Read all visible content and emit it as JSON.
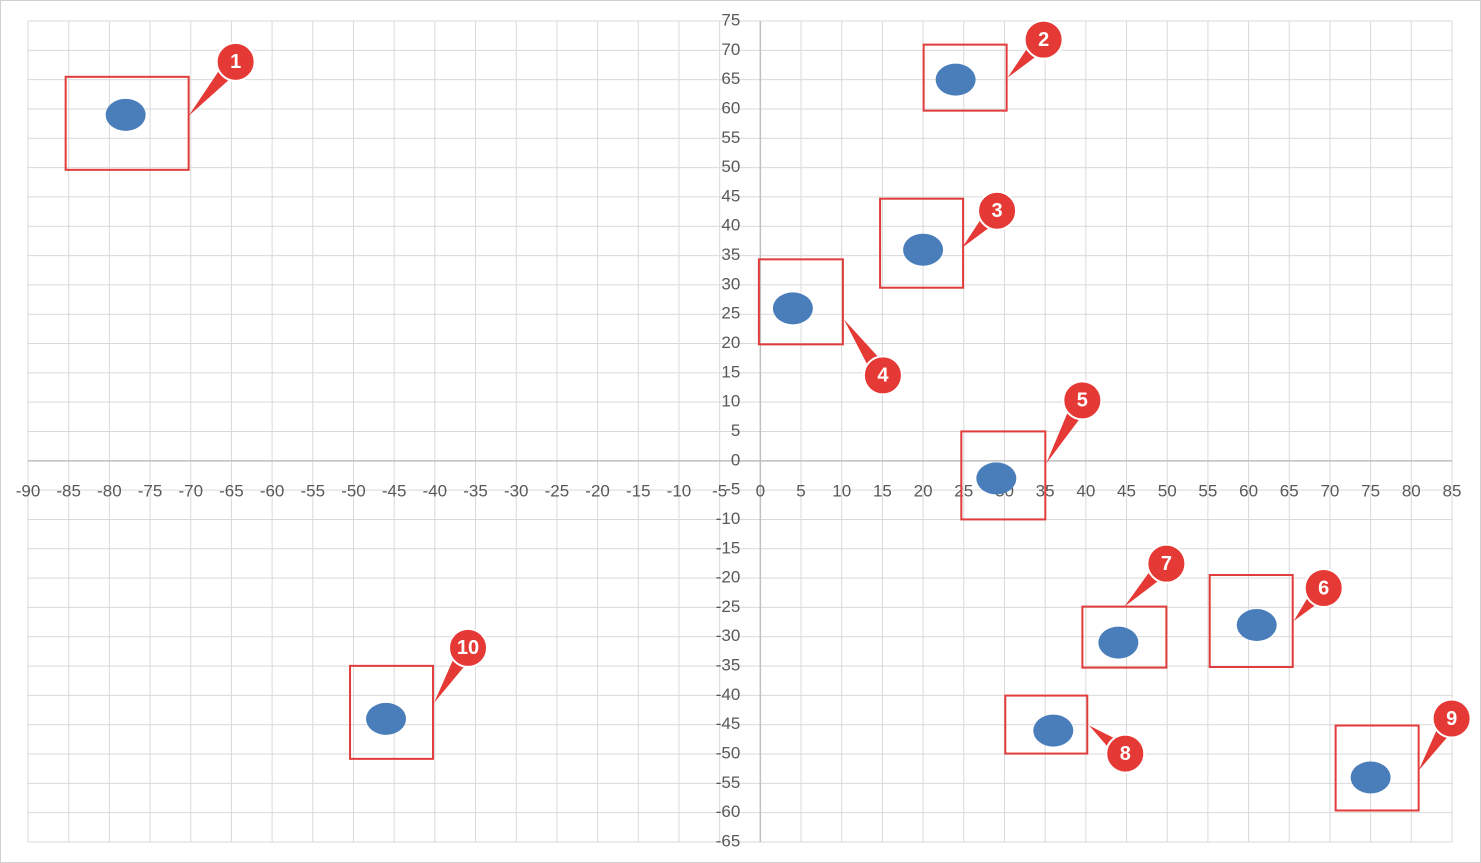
{
  "chart_data": {
    "type": "scatter",
    "x": [
      -78,
      24,
      20,
      4,
      29,
      61,
      44,
      36,
      75,
      -46
    ],
    "values": [
      59,
      65,
      36,
      26,
      -3,
      -28,
      -31,
      -46,
      -54,
      -44
    ],
    "annotations": [
      "1",
      "2",
      "3",
      "4",
      "5",
      "6",
      "7",
      "8",
      "9",
      "10"
    ],
    "color": "#4a7ebb",
    "xlim": [
      -90,
      85
    ],
    "xticks": [
      -90,
      -85,
      -80,
      -75,
      -70,
      -65,
      -60,
      -55,
      -50,
      -45,
      -40,
      -35,
      -30,
      -25,
      -20,
      -15,
      -10,
      -5,
      0,
      5,
      10,
      15,
      20,
      25,
      30,
      35,
      40,
      45,
      50,
      55,
      60,
      65,
      70,
      75,
      80,
      85
    ],
    "ylim": [
      -65,
      75
    ],
    "yticks": [
      -65,
      -60,
      -55,
      -50,
      -45,
      -40,
      -35,
      -30,
      -25,
      -20,
      -15,
      -10,
      -5,
      0,
      5,
      10,
      15,
      20,
      25,
      30,
      35,
      40,
      45,
      50,
      55,
      60,
      65,
      70,
      75
    ],
    "grid": true
  }
}
